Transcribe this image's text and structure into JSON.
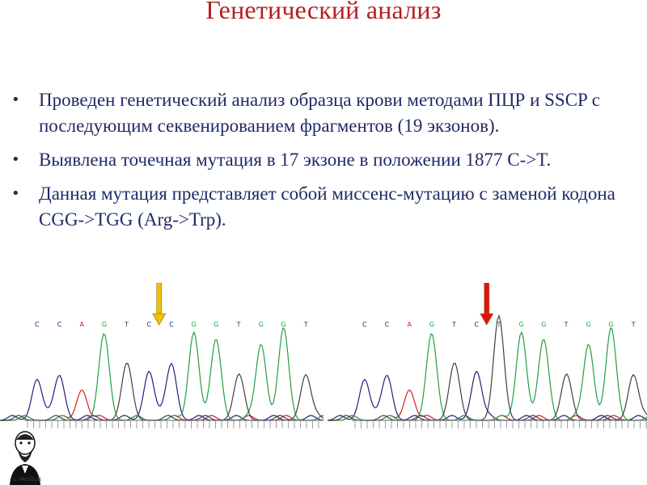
{
  "slide": {
    "title": "Генетический анализ",
    "bullets": [
      "Проведен генетический анализ образца крови методами ПЦР и SSCP с последующим секвенированием фрагментов (19 экзонов).",
      "Выявлена точечная мутация в 17 экзоне в положении 1877 C->T.",
      "Данная мутация представляет собой миссенс-мутацию с заменой кодона CGG->TGG (Arg->Trp)."
    ],
    "bullet_glyph": "•"
  },
  "chromatograms": {
    "left": {
      "bases": [
        "C",
        "C",
        "A",
        "G",
        "T",
        "C",
        "C",
        "G",
        "G",
        "T",
        "G",
        "G",
        "T"
      ],
      "arrow_color": "#f2c200",
      "arrow_base_index": 6
    },
    "right": {
      "bases": [
        "C",
        "C",
        "A",
        "G",
        "T",
        "C",
        "T",
        "G",
        "G",
        "T",
        "G",
        "G",
        "T"
      ],
      "arrow_color": "#e01010",
      "arrow_base_index": 6
    }
  },
  "base_colors": {
    "A": "#d42020",
    "C": "#202080",
    "G": "#20a040",
    "T": "#404040"
  },
  "logo": {
    "caption": "L. PASTEUR"
  }
}
